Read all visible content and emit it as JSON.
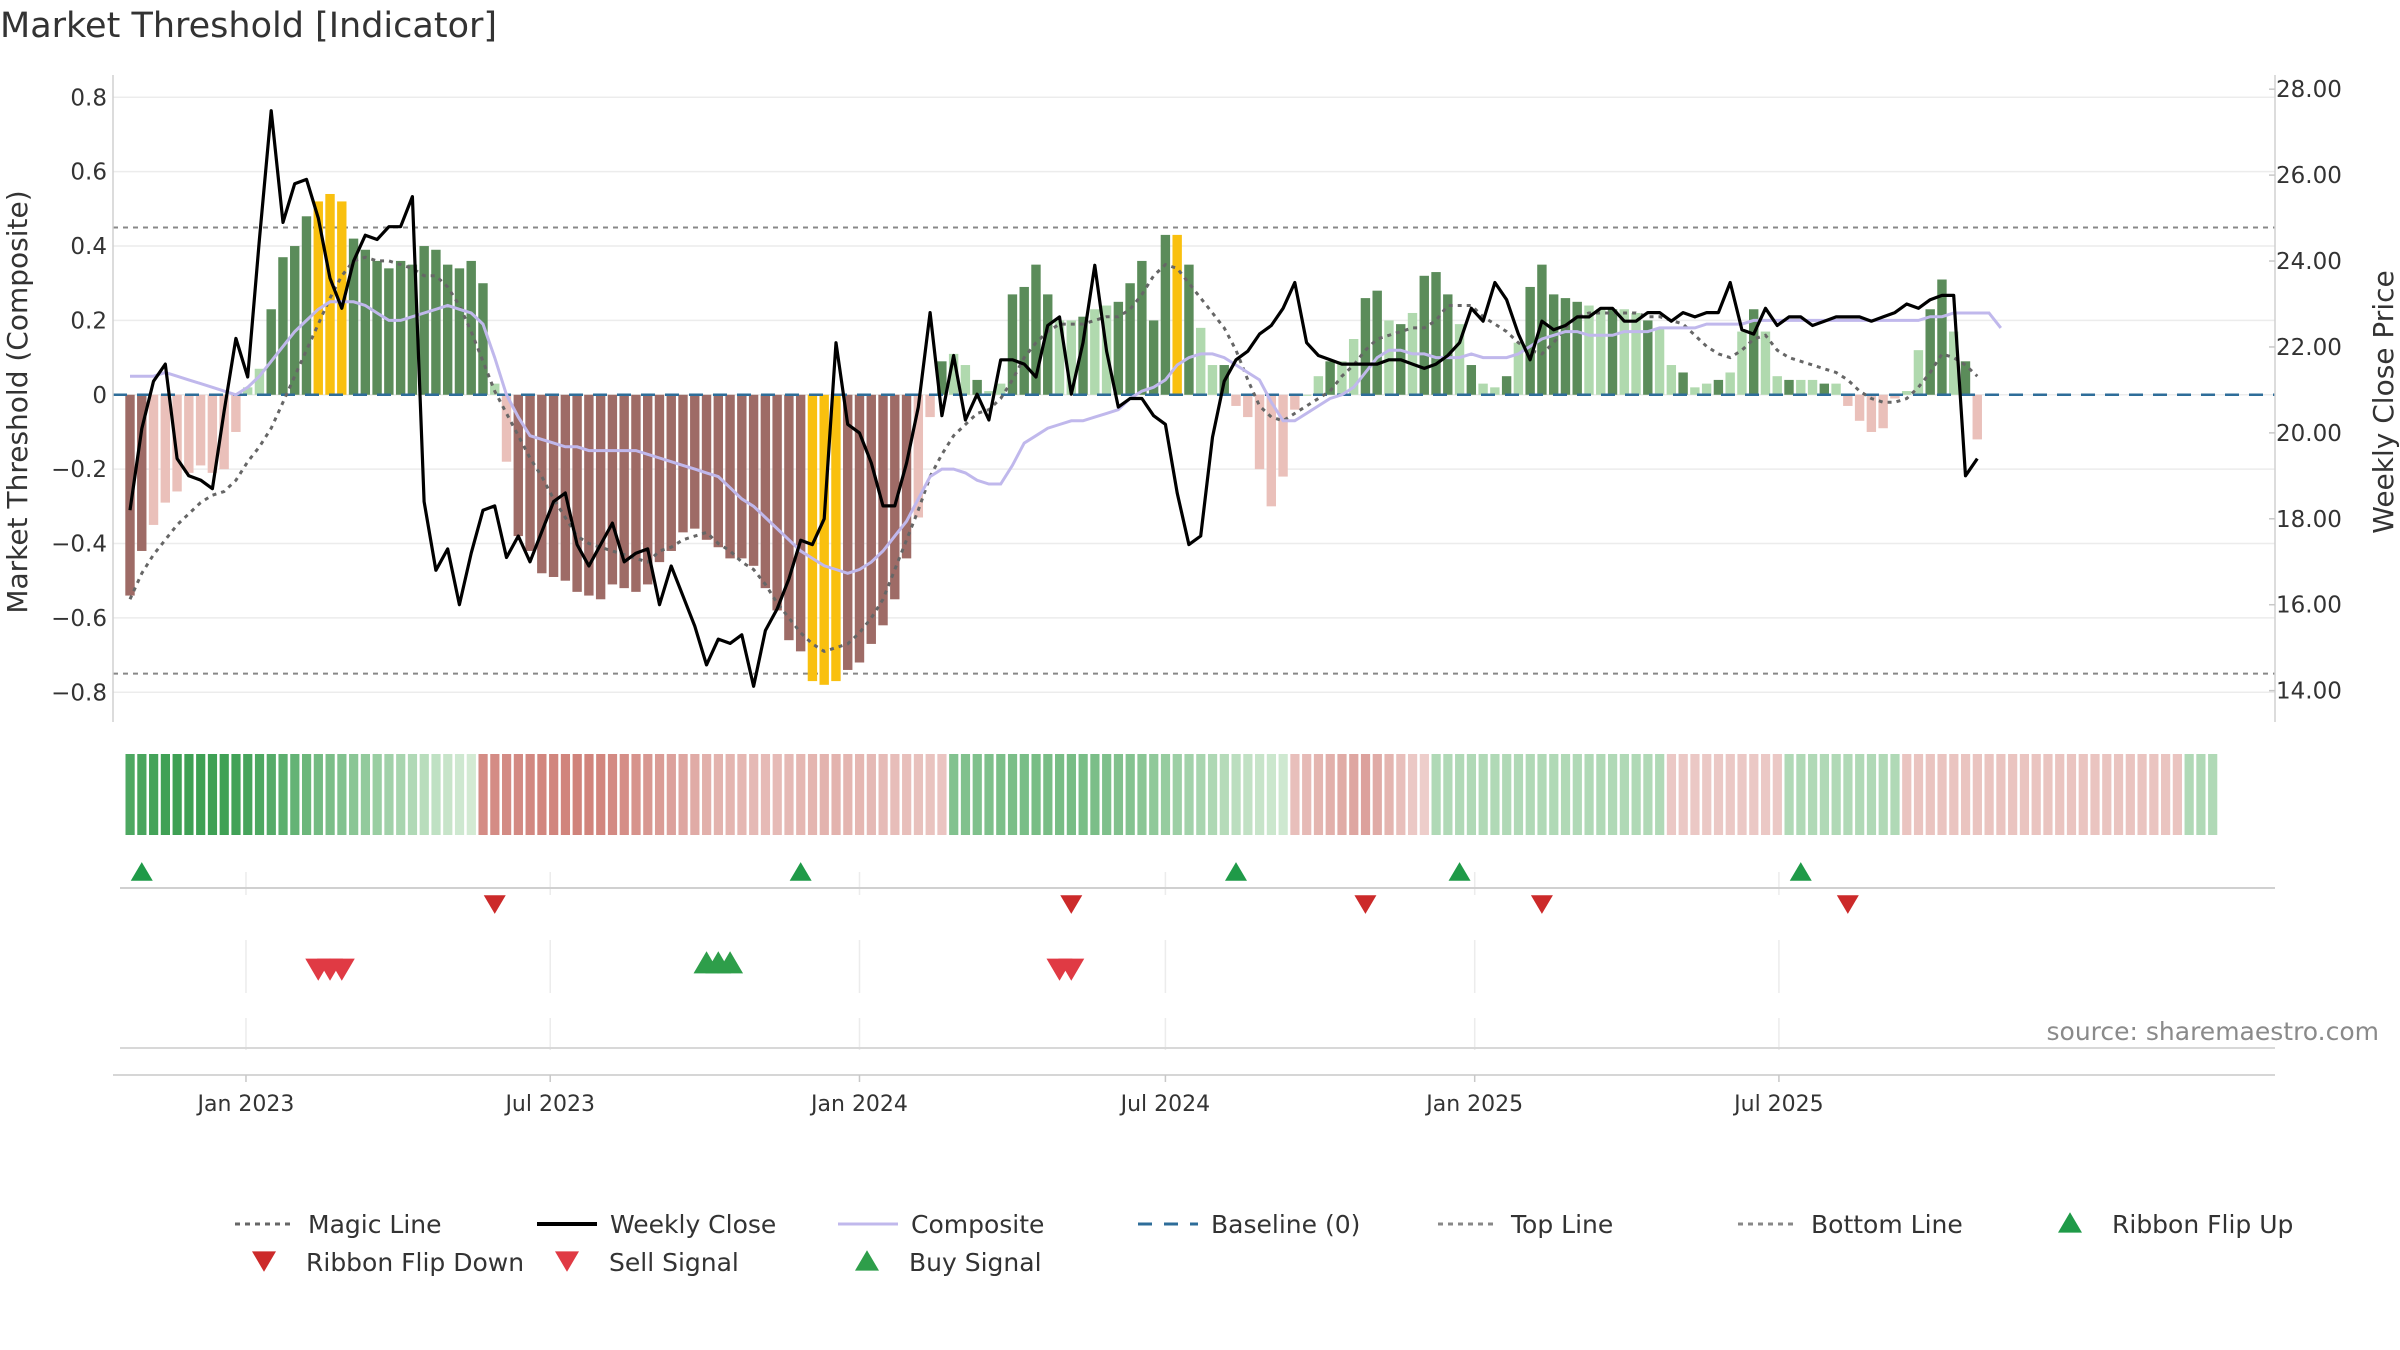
{
  "title": "Market Threshold [Indicator]",
  "source": "source: sharemaestro.com",
  "chart_data": {
    "type": "bar",
    "ylabel_left": "Market Threshold (Composite)",
    "ylabel_right": "Weekly Close Price",
    "ylim_left": [
      -0.88,
      0.86
    ],
    "ylim_right": [
      13.27,
      28.33
    ],
    "yticks_left": [
      "0.8",
      "0.6",
      "0.4",
      "0.2",
      "0",
      "−0.2",
      "−0.4",
      "−0.6",
      "−0.8"
    ],
    "yticks_right": [
      "28.00",
      "26.00",
      "24.00",
      "22.00",
      "20.00",
      "18.00",
      "16.00",
      "14.00"
    ],
    "x_start": "2022-10-24",
    "week_step_days": 7,
    "xticks": [
      {
        "date": "2023-01-01",
        "label": "Jan 2023"
      },
      {
        "date": "2023-07-01",
        "label": "Jul 2023"
      },
      {
        "date": "2024-01-01",
        "label": "Jan 2024"
      },
      {
        "date": "2024-07-01",
        "label": "Jul 2024"
      },
      {
        "date": "2025-01-01",
        "label": "Jan 2025"
      },
      {
        "date": "2025-07-01",
        "label": "Jul 2025"
      }
    ],
    "top_line": 0.45,
    "bottom_line": -0.75,
    "baseline": 0,
    "composite_bars": [
      -0.54,
      -0.42,
      -0.35,
      -0.29,
      -0.26,
      -0.21,
      -0.19,
      -0.21,
      -0.2,
      -0.1,
      0.02,
      0.07,
      0.23,
      0.37,
      0.4,
      0.48,
      0.52,
      0.54,
      0.52,
      0.42,
      0.39,
      0.36,
      0.34,
      0.36,
      0.35,
      0.4,
      0.39,
      0.35,
      0.34,
      0.36,
      0.3,
      0.03,
      -0.18,
      -0.38,
      -0.42,
      -0.48,
      -0.49,
      -0.5,
      -0.53,
      -0.54,
      -0.55,
      -0.51,
      -0.52,
      -0.53,
      -0.51,
      -0.45,
      -0.42,
      -0.37,
      -0.36,
      -0.39,
      -0.41,
      -0.44,
      -0.44,
      -0.46,
      -0.52,
      -0.58,
      -0.66,
      -0.69,
      -0.77,
      -0.78,
      -0.77,
      -0.74,
      -0.72,
      -0.67,
      -0.62,
      -0.55,
      -0.44,
      -0.33,
      -0.06,
      0.09,
      0.11,
      0.08,
      0.04,
      0.01,
      0.03,
      0.27,
      0.29,
      0.35,
      0.27,
      0.2,
      0.2,
      0.21,
      0.23,
      0.24,
      0.25,
      0.3,
      0.36,
      0.2,
      0.43,
      0.43,
      0.35,
      0.18,
      0.08,
      0.08,
      -0.03,
      -0.06,
      -0.2,
      -0.3,
      -0.22,
      -0.04,
      0.0,
      0.05,
      0.09,
      0.09,
      0.15,
      0.26,
      0.28,
      0.2,
      0.19,
      0.22,
      0.32,
      0.33,
      0.27,
      0.19,
      0.08,
      0.03,
      0.02,
      0.05,
      0.14,
      0.29,
      0.35,
      0.27,
      0.26,
      0.25,
      0.24,
      0.23,
      0.23,
      0.23,
      0.22,
      0.2,
      0.18,
      0.08,
      0.06,
      0.02,
      0.03,
      0.04,
      0.06,
      0.17,
      0.23,
      0.17,
      0.05,
      0.04,
      0.04,
      0.04,
      0.03,
      0.03,
      -0.03,
      -0.07,
      -0.1,
      -0.09,
      -0.01,
      0.01,
      0.12,
      0.23,
      0.31,
      0.17,
      0.09,
      -0.12
    ],
    "bar_colors": {
      "strong_up": "#5b8c5a",
      "weak_up": "#b0d9ae",
      "strong_down": "#9e6b66",
      "weak_down": "#eac0ba",
      "extreme": "#f9c00f"
    },
    "series": [
      {
        "name": "Weekly Close",
        "color": "#000000",
        "values": [
          18.2,
          20.1,
          21.2,
          21.6,
          19.4,
          19.0,
          18.9,
          18.7,
          20.5,
          22.2,
          21.3,
          24.5,
          27.5,
          24.9,
          25.8,
          25.9,
          25.0,
          23.6,
          22.9,
          24.0,
          24.6,
          24.5,
          24.8,
          24.8,
          25.5,
          18.4,
          16.8,
          17.3,
          16.0,
          17.2,
          18.2,
          18.3,
          17.1,
          17.6,
          17.0,
          17.7,
          18.4,
          18.6,
          17.4,
          16.9,
          17.4,
          17.9,
          17.0,
          17.2,
          17.3,
          16.0,
          16.9,
          16.2,
          15.5,
          14.6,
          15.2,
          15.1,
          15.3,
          14.1,
          15.4,
          15.9,
          16.6,
          17.5,
          17.4,
          18.0,
          22.1,
          20.2,
          20.0,
          19.3,
          18.3,
          18.3,
          19.3,
          20.6,
          22.8,
          20.4,
          21.8,
          20.3,
          20.9,
          20.3,
          21.7,
          21.7,
          21.6,
          21.3,
          22.5,
          22.7,
          20.9,
          22.1,
          23.9,
          21.9,
          20.6,
          20.8,
          20.8,
          20.4,
          20.2,
          18.6,
          17.4,
          17.6,
          19.9,
          21.2,
          21.7,
          21.9,
          22.3,
          22.5,
          22.9,
          23.5,
          22.1,
          21.8,
          21.7,
          21.6,
          21.6,
          21.6,
          21.6,
          21.7,
          21.7,
          21.6,
          21.5,
          21.6,
          21.8,
          22.1,
          22.9,
          22.6,
          23.5,
          23.1,
          22.3,
          21.7,
          22.6,
          22.4,
          22.5,
          22.7,
          22.7,
          22.9,
          22.9,
          22.6,
          22.6,
          22.8,
          22.8,
          22.6,
          22.8,
          22.7,
          22.8,
          22.8,
          23.5,
          22.4,
          22.3,
          22.9,
          22.5,
          22.7,
          22.7,
          22.5,
          22.6,
          22.7,
          22.7,
          22.7,
          22.6,
          22.7,
          22.8,
          23.0,
          22.9,
          23.1,
          23.2,
          23.2,
          19.0,
          19.4
        ],
        "ylim": [
          13.27,
          28.33
        ]
      },
      {
        "name": "Magic Line",
        "color": "#666666",
        "values": [
          -0.55,
          -0.48,
          -0.43,
          -0.39,
          -0.35,
          -0.32,
          -0.29,
          -0.27,
          -0.26,
          -0.23,
          -0.18,
          -0.14,
          -0.09,
          -0.02,
          0.05,
          0.12,
          0.19,
          0.26,
          0.32,
          0.36,
          0.37,
          0.36,
          0.36,
          0.35,
          0.34,
          0.32,
          0.32,
          0.29,
          0.24,
          0.17,
          0.09,
          0.01,
          -0.05,
          -0.11,
          -0.17,
          -0.22,
          -0.28,
          -0.33,
          -0.38,
          -0.4,
          -0.41,
          -0.42,
          -0.43,
          -0.44,
          -0.45,
          -0.42,
          -0.41,
          -0.39,
          -0.38,
          -0.37,
          -0.4,
          -0.42,
          -0.45,
          -0.47,
          -0.51,
          -0.56,
          -0.6,
          -0.64,
          -0.67,
          -0.69,
          -0.68,
          -0.67,
          -0.64,
          -0.6,
          -0.55,
          -0.47,
          -0.39,
          -0.31,
          -0.22,
          -0.16,
          -0.11,
          -0.08,
          -0.05,
          -0.04,
          -0.01,
          0.04,
          0.1,
          0.14,
          0.17,
          0.19,
          0.19,
          0.19,
          0.2,
          0.21,
          0.21,
          0.23,
          0.27,
          0.32,
          0.35,
          0.34,
          0.3,
          0.26,
          0.22,
          0.18,
          0.12,
          0.04,
          -0.03,
          -0.06,
          -0.07,
          -0.05,
          -0.03,
          -0.01,
          0.01,
          0.05,
          0.08,
          0.12,
          0.15,
          0.16,
          0.17,
          0.18,
          0.18,
          0.2,
          0.24,
          0.24,
          0.24,
          0.21,
          0.19,
          0.17,
          0.14,
          0.12,
          0.11,
          0.14,
          0.18,
          0.21,
          0.22,
          0.22,
          0.22,
          0.22,
          0.22,
          0.21,
          0.21,
          0.2,
          0.19,
          0.16,
          0.13,
          0.11,
          0.1,
          0.12,
          0.15,
          0.16,
          0.12,
          0.1,
          0.09,
          0.08,
          0.07,
          0.06,
          0.04,
          0.01,
          -0.01,
          -0.02,
          -0.02,
          -0.01,
          0.02,
          0.06,
          0.11,
          0.1,
          0.08,
          0.05
        ]
      },
      {
        "name": "Composite",
        "color": "#c0b8ec",
        "values": [
          0.05,
          0.05,
          0.05,
          0.06,
          0.05,
          0.04,
          0.03,
          0.02,
          0.01,
          0.0,
          0.02,
          0.05,
          0.09,
          0.13,
          0.17,
          0.2,
          0.23,
          0.25,
          0.25,
          0.25,
          0.24,
          0.22,
          0.2,
          0.2,
          0.21,
          0.22,
          0.23,
          0.24,
          0.23,
          0.22,
          0.19,
          0.1,
          0.0,
          -0.06,
          -0.11,
          -0.12,
          -0.13,
          -0.14,
          -0.14,
          -0.15,
          -0.15,
          -0.15,
          -0.15,
          -0.15,
          -0.16,
          -0.17,
          -0.18,
          -0.19,
          -0.2,
          -0.21,
          -0.22,
          -0.25,
          -0.28,
          -0.3,
          -0.33,
          -0.36,
          -0.39,
          -0.42,
          -0.44,
          -0.46,
          -0.47,
          -0.48,
          -0.47,
          -0.45,
          -0.42,
          -0.38,
          -0.34,
          -0.28,
          -0.22,
          -0.2,
          -0.2,
          -0.21,
          -0.23,
          -0.24,
          -0.24,
          -0.19,
          -0.13,
          -0.11,
          -0.09,
          -0.08,
          -0.07,
          -0.07,
          -0.06,
          -0.05,
          -0.04,
          -0.01,
          0.01,
          0.02,
          0.04,
          0.08,
          0.1,
          0.11,
          0.11,
          0.1,
          0.08,
          0.06,
          0.04,
          -0.02,
          -0.07,
          -0.07,
          -0.05,
          -0.03,
          -0.01,
          0.0,
          0.02,
          0.06,
          0.1,
          0.12,
          0.12,
          0.11,
          0.11,
          0.1,
          0.1,
          0.1,
          0.11,
          0.1,
          0.1,
          0.1,
          0.11,
          0.13,
          0.15,
          0.16,
          0.17,
          0.17,
          0.16,
          0.16,
          0.16,
          0.17,
          0.17,
          0.17,
          0.18,
          0.18,
          0.18,
          0.18,
          0.19,
          0.19,
          0.19,
          0.19,
          0.2,
          0.2,
          0.2,
          0.2,
          0.2,
          0.2,
          0.2,
          0.2,
          0.2,
          0.2,
          0.2,
          0.2,
          0.2,
          0.2,
          0.2,
          0.21,
          0.21,
          0.22,
          0.22,
          0.22,
          0.22,
          0.18
        ]
      }
    ],
    "ribbon": {
      "values": [
        0.9,
        0.93,
        0.96,
        0.99,
        1,
        1,
        1,
        1,
        0.99,
        0.98,
        0.95,
        0.9,
        0.85,
        0.8,
        0.75,
        0.7,
        0.65,
        0.6,
        0.55,
        0.5,
        0.45,
        0.4,
        0.35,
        0.3,
        0.25,
        0.2,
        0.15,
        0.1,
        0.05,
        0.02,
        -0.82,
        -0.82,
        -0.83,
        -0.84,
        -0.86,
        -0.88,
        -0.89,
        -0.9,
        -0.91,
        -0.9,
        -0.88,
        -0.84,
        -0.8,
        -0.75,
        -0.7,
        -0.65,
        -0.6,
        -0.55,
        -0.5,
        -0.45,
        -0.42,
        -0.4,
        -0.38,
        -0.36,
        -0.35,
        -0.35,
        -0.36,
        -0.38,
        -0.4,
        -0.42,
        -0.42,
        -0.4,
        -0.38,
        -0.36,
        -0.34,
        -0.32,
        -0.3,
        -0.28,
        -0.26,
        -0.24,
        0.55,
        0.56,
        0.57,
        0.58,
        0.59,
        0.6,
        0.61,
        0.62,
        0.62,
        0.62,
        0.62,
        0.61,
        0.6,
        0.58,
        0.56,
        0.54,
        0.5,
        0.46,
        0.42,
        0.38,
        0.34,
        0.3,
        0.26,
        0.22,
        0.18,
        0.14,
        0.1,
        0.07,
        0.05,
        -0.3,
        -0.35,
        -0.4,
        -0.45,
        -0.5,
        -0.55,
        -0.6,
        -0.5,
        -0.4,
        -0.3,
        -0.2,
        -0.15,
        0.25,
        0.25,
        0.25,
        0.25,
        0.25,
        0.25,
        0.25,
        0.25,
        0.25,
        0.25,
        0.25,
        0.25,
        0.25,
        0.25,
        0.25,
        0.25,
        0.25,
        0.25,
        0.25,
        0.25,
        -0.2,
        -0.2,
        -0.2,
        -0.2,
        -0.2,
        -0.2,
        -0.2,
        -0.2,
        -0.2,
        -0.2,
        0.25,
        0.25,
        0.25,
        0.25,
        0.25,
        0.25,
        0.25,
        0.25,
        0.25,
        0.25,
        -0.25,
        -0.25,
        -0.25,
        -0.25,
        -0.25,
        -0.25,
        -0.25,
        -0.25,
        -0.25,
        -0.25,
        -0.25,
        -0.25,
        -0.25,
        -0.25,
        -0.25,
        -0.25,
        -0.25,
        -0.25,
        -0.25,
        -0.25,
        -0.25,
        -0.25,
        -0.25,
        -0.25,
        0.25,
        0.25,
        0.25
      ]
    },
    "ribbon_flip_up": [
      "2022-10-31",
      "2023-11-27",
      "2024-08-12",
      "2024-12-23",
      "2025-07-14"
    ],
    "ribbon_flip_down": [
      "2023-05-29",
      "2024-05-06",
      "2024-10-28",
      "2025-02-10",
      "2025-08-11"
    ],
    "sell_signal": [
      "2023-02-13",
      "2023-02-20",
      "2023-02-27",
      "2024-04-29",
      "2024-05-06"
    ],
    "buy_signal": [
      "2023-10-02",
      "2023-10-09",
      "2023-10-16"
    ],
    "legend": [
      {
        "label": "Magic Line",
        "kind": "dotted",
        "color": "#666666"
      },
      {
        "label": "Weekly Close",
        "kind": "solid",
        "color": "#000000"
      },
      {
        "label": "Composite",
        "kind": "solid",
        "color": "#c0b8ec"
      },
      {
        "label": "Baseline (0)",
        "kind": "dashed",
        "color": "#2e6d99"
      },
      {
        "label": "Top Line",
        "kind": "dotted",
        "color": "#888888"
      },
      {
        "label": "Bottom Line",
        "kind": "dotted",
        "color": "#888888"
      },
      {
        "label": "Ribbon Flip Up",
        "kind": "tri-up",
        "color": "#1f9a48"
      },
      {
        "label": "Ribbon Flip Down",
        "kind": "tri-down",
        "color": "#cc2a2a"
      },
      {
        "label": "Sell Signal",
        "kind": "tri-down",
        "color": "#e03a44"
      },
      {
        "label": "Buy Signal",
        "kind": "tri-up",
        "color": "#2e9e4a"
      }
    ],
    "grid": true
  }
}
